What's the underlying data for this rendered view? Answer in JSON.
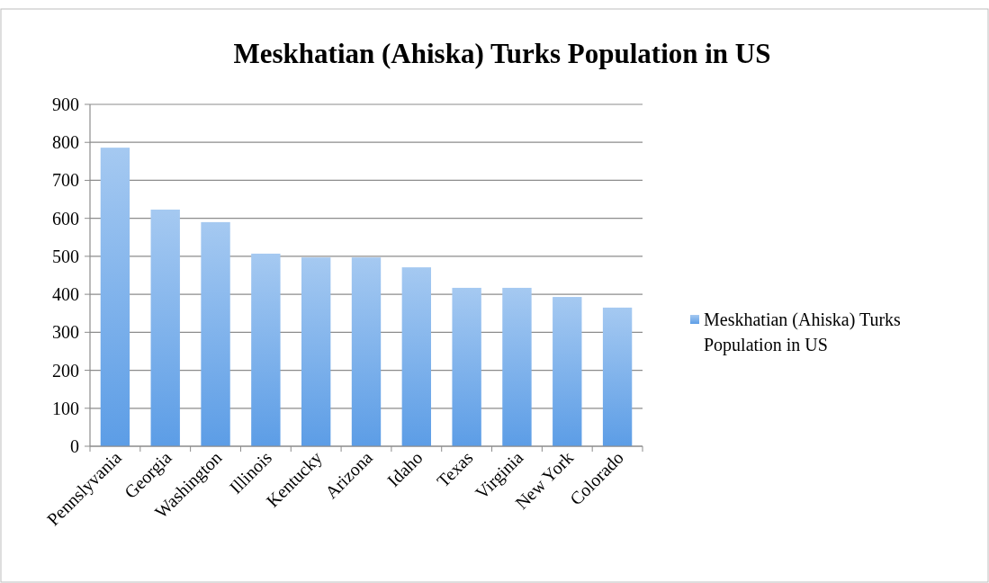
{
  "chart_data": {
    "type": "bar",
    "title": "Meskhatian (Ahiska) Turks Population in US",
    "categories": [
      "Pennslyvania",
      "Georgia",
      "Washington",
      "Illinois",
      "Kentucky",
      "Arizona",
      "Idaho",
      "Texas",
      "Virginia",
      "New York",
      "Colorado"
    ],
    "series": [
      {
        "name": "Meskhatian (Ahiska) Turks Population in US",
        "color": "#5c9de6",
        "values": [
          786,
          623,
          590,
          507,
          497,
          497,
          471,
          417,
          417,
          393,
          365
        ]
      }
    ],
    "ylim": [
      0,
      900
    ],
    "yticks": [
      0,
      100,
      200,
      300,
      400,
      500,
      600,
      700,
      800,
      900
    ],
    "grid": "y",
    "legend": "right"
  }
}
